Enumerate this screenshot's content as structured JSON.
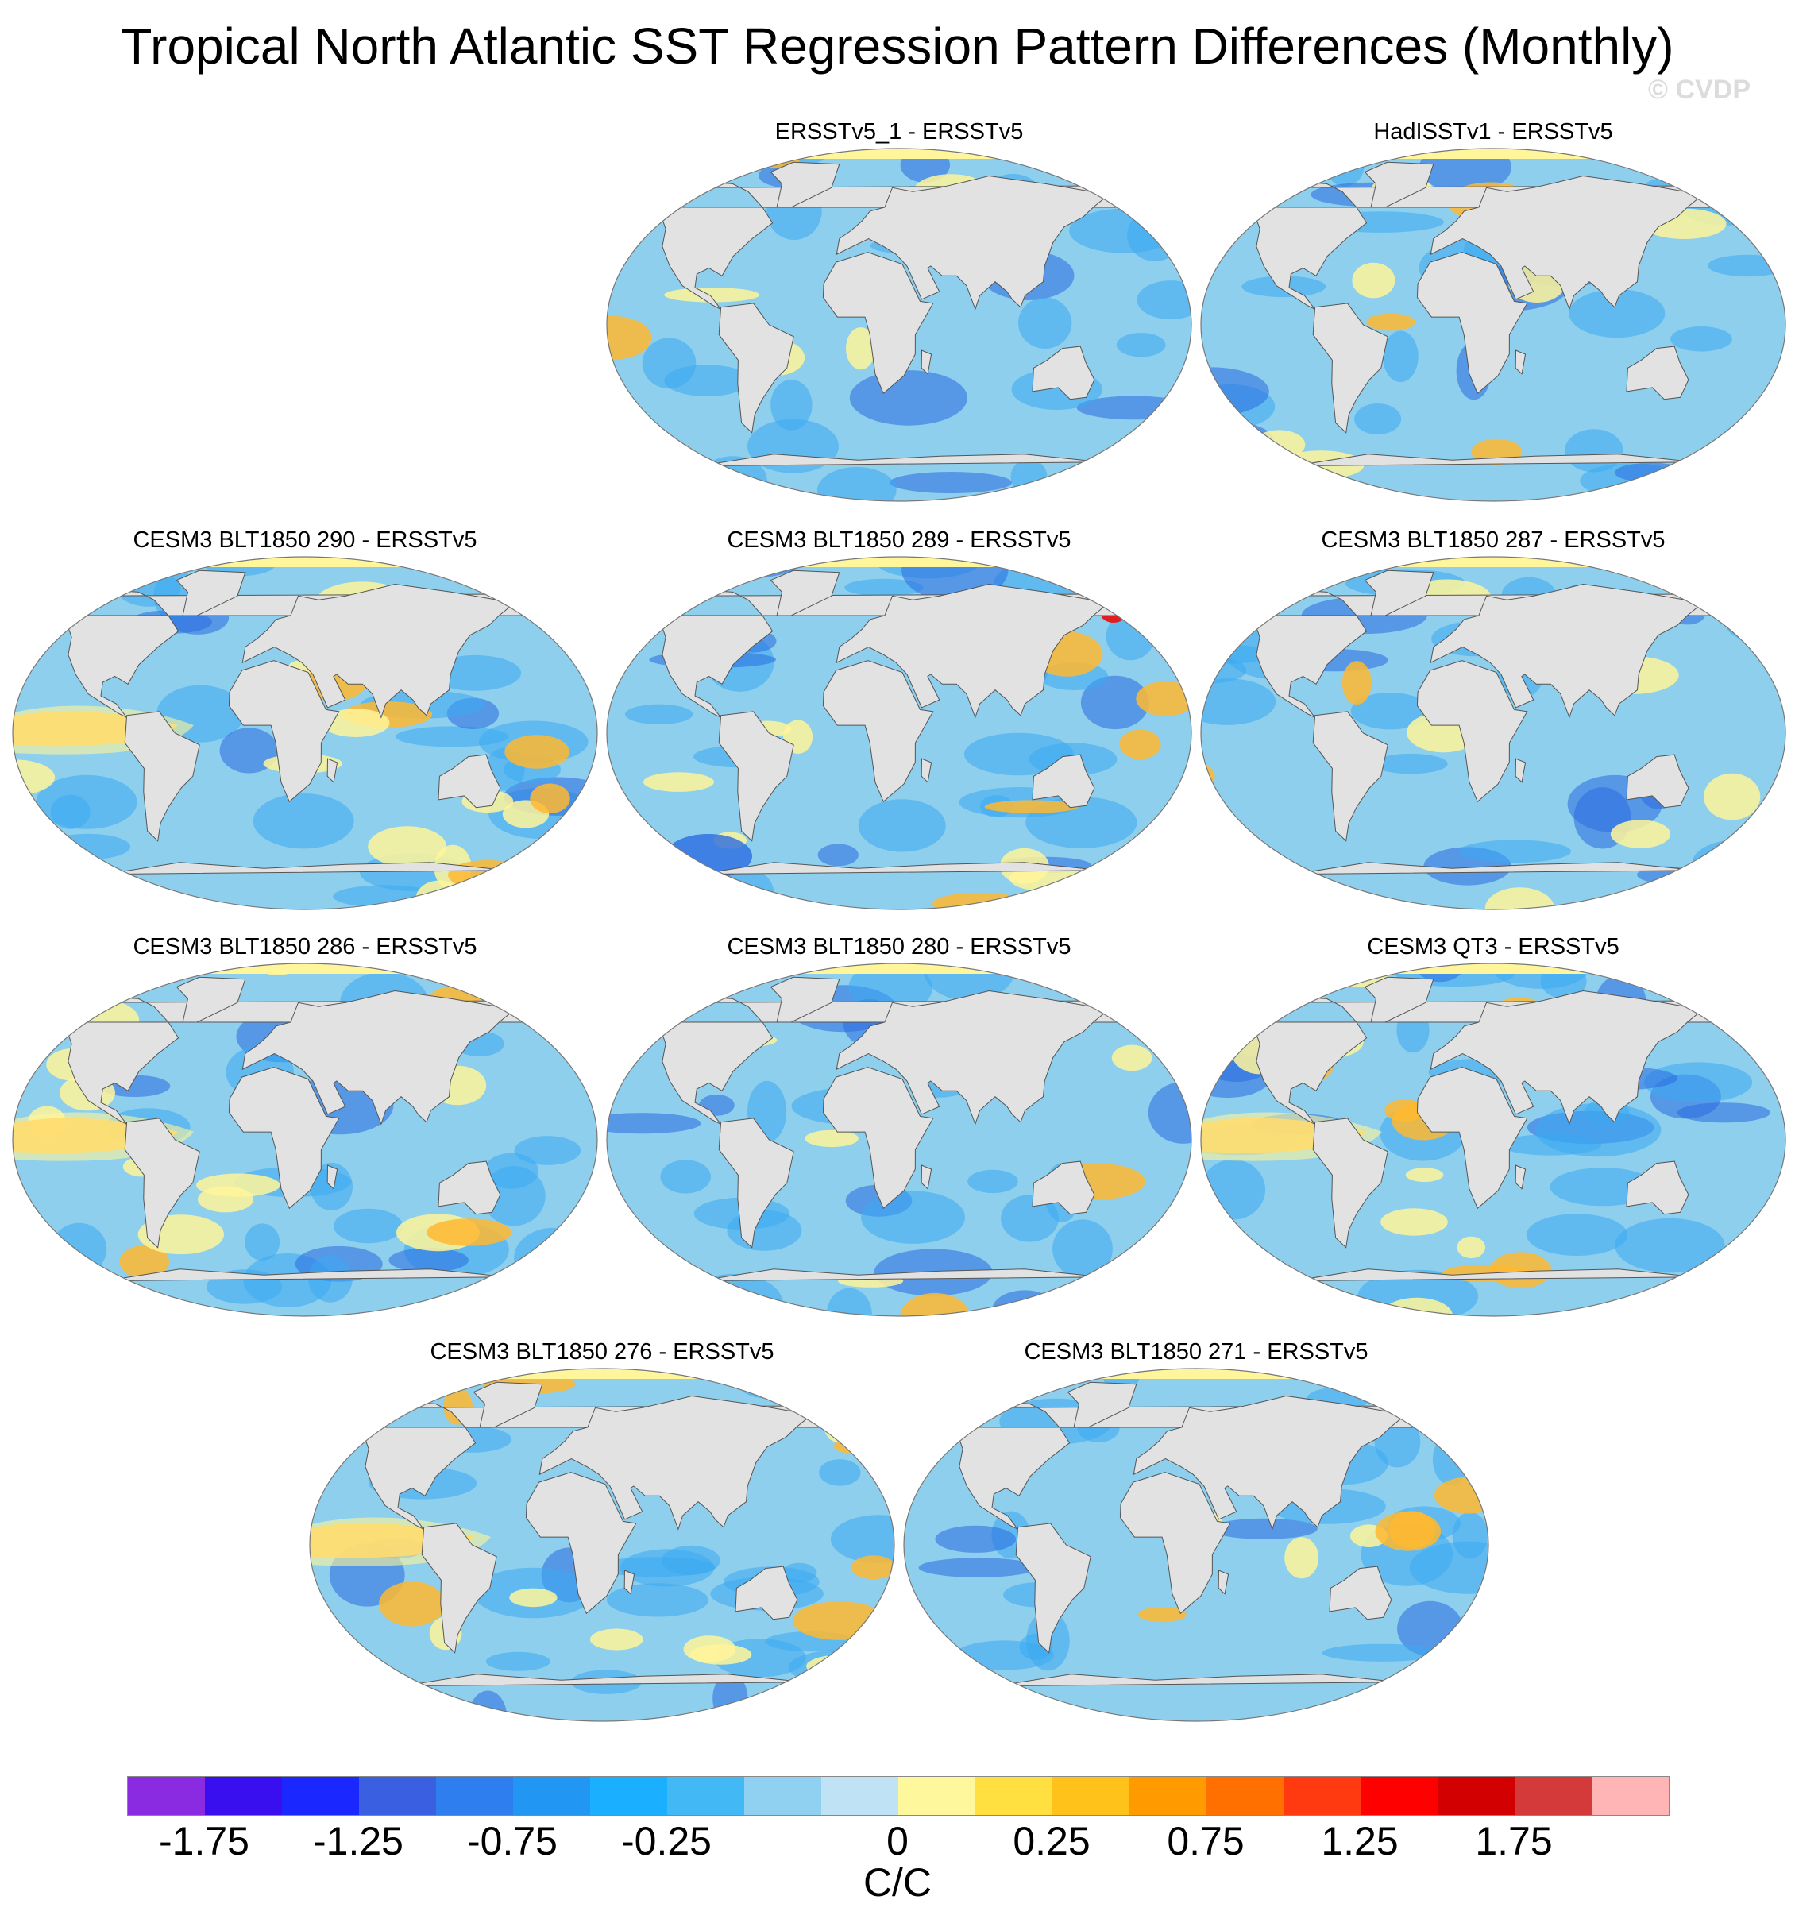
{
  "title": "Tropical North Atlantic SST Regression Pattern Differences (Monthly)",
  "copyright": "© CVDP",
  "colors": {
    "ocean_base": "#8ecfee",
    "land": "#e2e2e2",
    "coast": "#555555",
    "blue": "#3aaaf0",
    "deep_blue": "#2a6be0",
    "yellow": "#fff59a",
    "orange": "#ffb830",
    "red": "#e02020"
  },
  "panels": [
    {
      "label": "ERSSTv5_1 - ERSSTv5",
      "warm_amount": "low"
    },
    {
      "label": "HadISSTv1 - ERSSTv5",
      "warm_amount": "medium"
    },
    {
      "label": "CESM3 BLT1850 290 - ERSSTv5",
      "warm_amount": "high"
    },
    {
      "label": "CESM3 BLT1850 289 - ERSSTv5",
      "warm_amount": "mixed"
    },
    {
      "label": "CESM3 BLT1850 287 - ERSSTv5",
      "warm_amount": "medium"
    },
    {
      "label": "CESM3 BLT1850 286 - ERSSTv5",
      "warm_amount": "high"
    },
    {
      "label": "CESM3 BLT1850 280 - ERSSTv5",
      "warm_amount": "low"
    },
    {
      "label": "CESM3 QT3 - ERSSTv5",
      "warm_amount": "high"
    },
    {
      "label": "CESM3 BLT1850 276 - ERSSTv5",
      "warm_amount": "high"
    },
    {
      "label": "CESM3 BLT1850 271 - ERSSTv5",
      "warm_amount": "medium"
    }
  ],
  "colorbar": {
    "units": "C/C",
    "colors": [
      "#8a2be2",
      "#3a0fef",
      "#1a28ff",
      "#3a5fe0",
      "#2f7ef0",
      "#2196f3",
      "#1ab0ff",
      "#42b8f4",
      "#90d0f0",
      "#bfe3f5",
      "#fff79c",
      "#ffe040",
      "#ffc21a",
      "#ff9b00",
      "#ff7000",
      "#ff3a10",
      "#ff0000",
      "#d20000",
      "#d43a3a",
      "#ffb5b5"
    ],
    "ticks": [
      {
        "label": "-1.75",
        "boundary": 1
      },
      {
        "label": "-1.25",
        "boundary": 3
      },
      {
        "label": "-0.75",
        "boundary": 5
      },
      {
        "label": "-0.25",
        "boundary": 7
      },
      {
        "label": "0",
        "boundary": 10
      },
      {
        "label": "0.25",
        "boundary": 12
      },
      {
        "label": "0.75",
        "boundary": 14
      },
      {
        "label": "1.25",
        "boundary": 16
      },
      {
        "label": "1.75",
        "boundary": 18
      }
    ]
  }
}
